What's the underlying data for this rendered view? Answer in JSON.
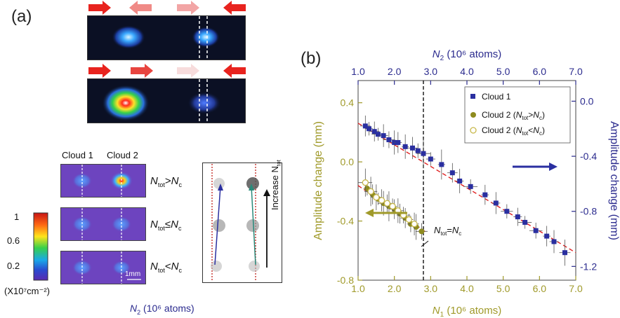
{
  "panel_a": {
    "label": "(a)",
    "arrow_colors_row1": [
      "#e8231e",
      "#f08a86",
      "#f2a5a5",
      "#e8231e"
    ],
    "arrow_colors_row2": [
      "#e8231e",
      "#e8453f",
      "#f7dcdc",
      "#e8231e"
    ],
    "cloud1_label": "Cloud 1",
    "cloud2_label": "Cloud 2",
    "ineq1": {
      "a": "N",
      "asub": "tot",
      "op": ">",
      "b": "N",
      "bsub": "c"
    },
    "ineq2": {
      "a": "N",
      "asub": "tot",
      "op": "≤",
      "b": "N",
      "bsub": "c"
    },
    "ineq3": {
      "a": "N",
      "asub": "tot",
      "op": "<",
      "b": "N",
      "bsub": "c"
    },
    "colorbar_ticks": [
      "1",
      "0.6",
      "0.2"
    ],
    "colorbar_unit": "(X10⁷cm⁻²)",
    "scale_bar": "1mm",
    "increase_label": "Increase N",
    "increase_sub": "tot",
    "n2_label": "N",
    "n2_sub": "2",
    "n2_unit": " (10⁶ atoms)"
  },
  "chart_data": {
    "type": "scatter",
    "panel_label": "(b)",
    "top_axis": {
      "label": "N",
      "sub": "2",
      "unit": " (10⁶ atoms)",
      "color": "#2b2b8e",
      "ticks": [
        "1.0",
        "2.0",
        "3.0",
        "4.0",
        "5.0",
        "6.0",
        "7.0"
      ],
      "range": [
        1.0,
        7.0
      ]
    },
    "bottom_axis": {
      "label": "N",
      "sub": "1",
      "unit": " (10⁶ atoms)",
      "color": "#a09a2a",
      "ticks": [
        "1.0",
        "2.0",
        "3.0",
        "4.0",
        "5.0",
        "6.0",
        "7.0"
      ],
      "range": [
        1.0,
        7.0
      ]
    },
    "left_axis": {
      "label": "Amplitude change (mm)",
      "color": "#a09a2a",
      "ticks": [
        "0.4",
        "0.0",
        "-0.4",
        "-0.8"
      ],
      "tick_values": [
        0.4,
        0.0,
        -0.4,
        -0.8
      ],
      "range": [
        -0.8,
        0.55
      ]
    },
    "right_axis": {
      "label": "Amplitude change (mm)",
      "color": "#2b2b8e",
      "ticks": [
        "0.0",
        "-0.4",
        "-0.8",
        "-1.2"
      ],
      "tick_values": [
        0.0,
        -0.4,
        -0.8,
        -1.2
      ],
      "range": [
        -1.3,
        0.15
      ]
    },
    "legend": [
      {
        "name": "Cloud 1",
        "marker": "square",
        "color": "#2a2fa0"
      },
      {
        "name_main": "Cloud 2 (",
        "name_italic": "N",
        "name_sub": "tot",
        "name_op": ">",
        "name_italic2": "N",
        "name_sub2": "c",
        "name_end": ")",
        "marker": "circle",
        "color": "#8e8b1e"
      },
      {
        "name_main": "Cloud 2 (",
        "name_italic": "N",
        "name_sub": "tot",
        "name_op": "<",
        "name_italic2": "N",
        "name_sub2": "c",
        "name_end": ")",
        "marker": "open-circle",
        "color": "#c8b84a"
      }
    ],
    "legend_position": "top-right",
    "annotation": {
      "a": "N",
      "asub": "tot",
      "op": "=",
      "b": "N",
      "bsub": "c"
    },
    "critical_x": 2.8,
    "series": [
      {
        "name": "Cloud 1",
        "axis": "right",
        "x_axis": "top",
        "x": [
          1.2,
          1.3,
          1.45,
          1.55,
          1.7,
          1.85,
          2.0,
          2.1,
          2.3,
          2.5,
          2.65,
          2.8,
          3.0,
          3.3,
          3.6,
          3.8,
          4.1,
          4.5,
          4.8,
          5.1,
          5.4,
          5.6,
          5.9,
          6.2,
          6.4,
          6.7
        ],
        "y": [
          -0.18,
          -0.2,
          -0.22,
          -0.24,
          -0.25,
          -0.28,
          -0.3,
          -0.3,
          -0.33,
          -0.34,
          -0.36,
          -0.38,
          -0.42,
          -0.46,
          -0.52,
          -0.58,
          -0.62,
          -0.68,
          -0.74,
          -0.8,
          -0.84,
          -0.88,
          -0.94,
          -0.98,
          -1.02,
          -1.1
        ],
        "trend": [
          [
            1.0,
            -0.16
          ],
          [
            7.0,
            -1.1
          ]
        ]
      },
      {
        "name": "Cloud 2 (Ntot>Nc)",
        "axis": "left",
        "x_axis": "bottom",
        "x": [
          1.25,
          1.4,
          1.55,
          1.7,
          1.85,
          2.0,
          2.15,
          2.3,
          2.45,
          2.6,
          2.75
        ],
        "y": [
          -0.18,
          -0.22,
          -0.25,
          -0.28,
          -0.3,
          -0.32,
          -0.35,
          -0.38,
          -0.42,
          -0.44,
          -0.47
        ],
        "trend": [
          [
            1.0,
            -0.16
          ],
          [
            2.9,
            -0.48
          ]
        ]
      },
      {
        "name": "Cloud 2 (Ntot<Nc)",
        "axis": "left",
        "x_axis": "bottom",
        "x": [
          1.2,
          1.35,
          1.5,
          1.65,
          1.8,
          1.95,
          2.1,
          2.25,
          2.4,
          2.55
        ],
        "y": [
          -0.14,
          -0.2,
          -0.24,
          -0.26,
          -0.28,
          -0.3,
          -0.33,
          -0.36,
          -0.39,
          -0.42
        ]
      }
    ]
  }
}
